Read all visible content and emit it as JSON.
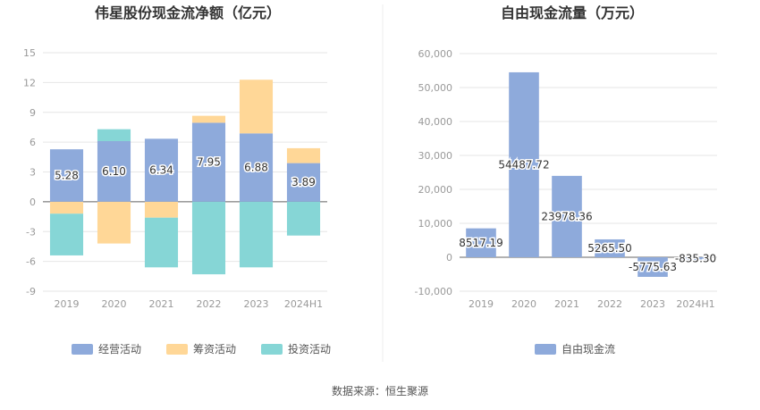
{
  "source": "数据来源：恒生聚源",
  "chart_data": [
    {
      "type": "bar",
      "title": "伟星股份现金流净额（亿元）",
      "categories": [
        "2019",
        "2020",
        "2021",
        "2022",
        "2023",
        "2024H1"
      ],
      "ylim": [
        -9,
        15
      ],
      "yticks": [
        "15",
        "12",
        "9",
        "6",
        "3",
        "0",
        "-3",
        "-6",
        "-9"
      ],
      "stacked": true,
      "grid": true,
      "legend_position": "bottom",
      "series": [
        {
          "name": "经营活动",
          "color": "#8eaadb",
          "values": [
            5.28,
            6.1,
            6.34,
            7.95,
            6.88,
            3.89
          ],
          "labels": [
            "5.28",
            "6.10",
            "6.34",
            "7.95",
            "6.88",
            "3.89"
          ]
        },
        {
          "name": "筹资活动",
          "color": "#ffd797",
          "values": [
            -1.2,
            -4.2,
            -1.6,
            0.7,
            5.4,
            1.5
          ]
        },
        {
          "name": "投资活动",
          "color": "#86d6d6",
          "values": [
            -4.2,
            1.2,
            -5.0,
            -7.3,
            -6.6,
            -3.4
          ]
        }
      ]
    },
    {
      "type": "bar",
      "title": "自由现金流量（万元）",
      "categories": [
        "2019",
        "2020",
        "2021",
        "2022",
        "2023",
        "2024H1"
      ],
      "ylim": [
        -10000,
        60000
      ],
      "yticks": [
        "60,000",
        "50,000",
        "40,000",
        "30,000",
        "20,000",
        "10,000",
        "0",
        "-10,000"
      ],
      "grid": true,
      "legend_position": "bottom",
      "series": [
        {
          "name": "自由现金流",
          "color": "#8eaadb",
          "values": [
            8517.19,
            54487.72,
            23978.36,
            5265.5,
            -5775.63,
            -835.3
          ],
          "labels": [
            "8517.19",
            "54487.72",
            "23978.36",
            "5265.50",
            "-5775.63",
            "-835.30"
          ]
        }
      ]
    }
  ]
}
